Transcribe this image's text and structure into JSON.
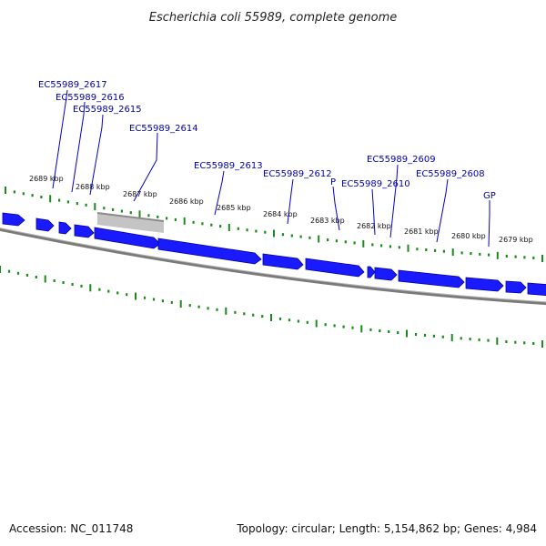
{
  "header": {
    "title": "Escherichia coli 55989, complete genome"
  },
  "footer": {
    "accession": "Accession: NC_011748",
    "summary": "Topology: circular; Length: 5,154,862 bp; Genes: 4,984"
  },
  "colors": {
    "background": "#ffffff",
    "gene_arrow": "#1a1aff",
    "gene_arrow_edge": "#0000a0",
    "backbone": "#7a7a7a",
    "tick": "#1a8a1a",
    "label_text": "#0000aa",
    "label_line": "#0000cc",
    "highlight_bar": "#bdbdbd"
  },
  "kbp_ticks": [
    "2689 kbp",
    "2688 kbp",
    "2687 kbp",
    "2686 kbp",
    "2685 kbp",
    "2684 kbp",
    "2683 kbp",
    "2682 kbp",
    "2681 kbp",
    "2680 kbp",
    "2679 kbp"
  ],
  "gene_labels": [
    "EC55989_2617",
    "EC55989_2616",
    "EC55989_2615",
    "EC55989_2614",
    "EC55989_2613",
    "EC55989_2612",
    "P",
    "EC55989_2610",
    "EC55989_2609",
    "EC55989_2608",
    "GP"
  ]
}
